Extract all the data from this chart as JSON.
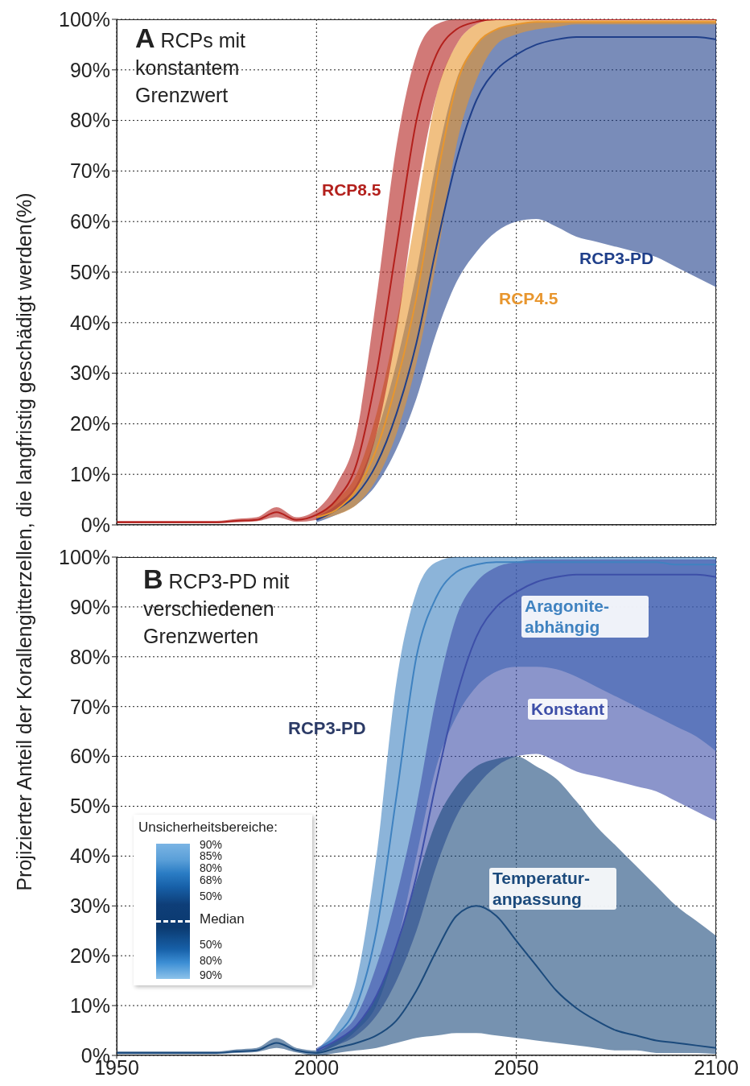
{
  "chart_data": [
    {
      "type": "line",
      "title": "A RCPs mit konstantem Grenzwert",
      "ylabel": "Projizierter Anteil der Korallengitterzellen, die langfristig geschädigt werden(%)",
      "x": [
        1950,
        1955,
        1960,
        1965,
        1970,
        1975,
        1980,
        1985,
        1990,
        1995,
        2000,
        2005,
        2010,
        2015,
        2020,
        2025,
        2030,
        2035,
        2040,
        2045,
        2050,
        2055,
        2060,
        2065,
        2070,
        2075,
        2080,
        2085,
        2090,
        2095,
        2100
      ],
      "series": [
        {
          "name": "RCP3-PD",
          "color": "#1f3f8a",
          "values": [
            null,
            null,
            null,
            null,
            null,
            null,
            null,
            null,
            null,
            null,
            1,
            3,
            6,
            12,
            22,
            36,
            55,
            72,
            84,
            90,
            93,
            95,
            96,
            96.5,
            96.5,
            96.5,
            96.5,
            96.5,
            96.5,
            96.5,
            96
          ],
          "lower": [
            null,
            null,
            null,
            null,
            null,
            null,
            null,
            null,
            null,
            null,
            0.5,
            2,
            4,
            8,
            15,
            25,
            38,
            48,
            54,
            58,
            60,
            60.5,
            59,
            57,
            56,
            55,
            54,
            53,
            51,
            49,
            47
          ],
          "upper": [
            null,
            null,
            null,
            null,
            null,
            null,
            null,
            null,
            null,
            null,
            1.5,
            4,
            8,
            18,
            32,
            50,
            72,
            88,
            95,
            98,
            99,
            99.5,
            99.5,
            99.5,
            99.5,
            99.5,
            99.5,
            99.5,
            99.5,
            99.5,
            99.5
          ]
        },
        {
          "name": "RCP4.5",
          "color": "#e8962e",
          "values": [
            null,
            null,
            null,
            null,
            null,
            null,
            null,
            null,
            null,
            null,
            1.5,
            3,
            7,
            15,
            28,
            45,
            68,
            87,
            95,
            98,
            99,
            99.5,
            99.5,
            99.5,
            99.5,
            99.5,
            99.5,
            99.5,
            99.5,
            99.5,
            99.5
          ],
          "lower": [
            null,
            null,
            null,
            null,
            null,
            null,
            null,
            null,
            null,
            null,
            1,
            2,
            4,
            9,
            18,
            32,
            52,
            75,
            88,
            95,
            97,
            98,
            98.5,
            99,
            99,
            99,
            99,
            99,
            99,
            99,
            99
          ],
          "upper": [
            null,
            null,
            null,
            null,
            null,
            null,
            null,
            null,
            null,
            null,
            2,
            5,
            10,
            22,
            40,
            62,
            85,
            95,
            99,
            100,
            100,
            100,
            100,
            100,
            100,
            100,
            100,
            100,
            100,
            100,
            100
          ]
        },
        {
          "name": "RCP8.5",
          "color": "#b3201c",
          "values": [
            0.5,
            0.5,
            0.5,
            0.5,
            0.5,
            0.5,
            0.8,
            1,
            2.5,
            1,
            2,
            5,
            12,
            30,
            55,
            80,
            93,
            98,
            99.5,
            100,
            100,
            100,
            100,
            100,
            100,
            100,
            100,
            100,
            100,
            100,
            100
          ],
          "lower": [
            0.3,
            0.3,
            0.3,
            0.3,
            0.3,
            0.3,
            0.5,
            0.7,
            1.5,
            0.6,
            1,
            3,
            7,
            18,
            38,
            65,
            85,
            95,
            99,
            100,
            100,
            100,
            100,
            100,
            100,
            100,
            100,
            100,
            100,
            100,
            100
          ],
          "upper": [
            0.8,
            0.8,
            0.8,
            0.8,
            0.8,
            0.8,
            1.2,
            1.5,
            3.5,
            1.5,
            3,
            8,
            18,
            45,
            75,
            93,
            99,
            100,
            100,
            100,
            100,
            100,
            100,
            100,
            100,
            100,
            100,
            100,
            100,
            100,
            100
          ]
        }
      ],
      "xlim": [
        1950,
        2100
      ],
      "xticks": [
        1950,
        2000,
        2050,
        2100
      ],
      "ylim": [
        0,
        100
      ],
      "yticks": [
        {
          "value": 0,
          "label": "0%"
        },
        {
          "value": 10,
          "label": "10%"
        },
        {
          "value": 20,
          "label": "20%"
        },
        {
          "value": 30,
          "label": "30%"
        },
        {
          "value": 40,
          "label": "40%"
        },
        {
          "value": 50,
          "label": "50%"
        },
        {
          "value": 60,
          "label": "60%"
        },
        {
          "value": 70,
          "label": "70%"
        },
        {
          "value": 80,
          "label": "80%"
        },
        {
          "value": 90,
          "label": "90%"
        },
        {
          "value": 100,
          "label": "100%"
        }
      ],
      "grid": true,
      "tick_labels": "y"
    },
    {
      "type": "line",
      "title": "B RCP3-PD mit verschiedenen Grenzwerten",
      "legend_title": "Unsicherheitsbereiche:",
      "annotations": [
        "RCP3-PD",
        "90%",
        "85%",
        "80%",
        "68%",
        "50%",
        "Median",
        "50%",
        "80%",
        "90%"
      ],
      "x": [
        1950,
        1955,
        1960,
        1965,
        1970,
        1975,
        1980,
        1985,
        1990,
        1995,
        2000,
        2005,
        2010,
        2015,
        2020,
        2025,
        2030,
        2035,
        2040,
        2045,
        2050,
        2055,
        2060,
        2065,
        2070,
        2075,
        2080,
        2085,
        2090,
        2095,
        2100
      ],
      "series": [
        {
          "name": "Aragonite-abhängig",
          "color": "#3f82c0",
          "values": [
            null,
            null,
            null,
            null,
            null,
            null,
            null,
            null,
            null,
            null,
            1,
            4,
            10,
            25,
            52,
            80,
            92,
            97,
            98.5,
            99,
            99,
            99,
            99,
            99,
            99,
            99,
            99,
            99,
            98.5,
            98.5,
            98.5
          ],
          "lower": [
            null,
            null,
            null,
            null,
            null,
            null,
            null,
            null,
            null,
            null,
            0.5,
            2,
            5,
            10,
            22,
            40,
            58,
            68,
            74,
            77,
            78,
            78,
            77.5,
            76,
            74,
            72,
            70,
            68,
            66,
            64,
            61
          ],
          "upper": [
            null,
            null,
            null,
            null,
            null,
            null,
            null,
            null,
            null,
            null,
            1,
            6,
            15,
            40,
            75,
            93,
            99,
            100,
            100,
            100,
            100,
            100,
            100,
            100,
            100,
            100,
            100,
            100,
            100,
            100,
            100
          ]
        },
        {
          "name": "Konstant",
          "color": "#3d4fa8",
          "values": [
            null,
            null,
            null,
            null,
            null,
            null,
            null,
            null,
            null,
            null,
            1,
            3,
            6,
            12,
            22,
            36,
            55,
            72,
            84,
            90,
            93,
            95,
            96,
            96.5,
            96.5,
            96.5,
            96.5,
            96.5,
            96.5,
            96.5,
            96
          ],
          "lower": [
            null,
            null,
            null,
            null,
            null,
            null,
            null,
            null,
            null,
            null,
            0.5,
            2,
            4,
            8,
            15,
            25,
            38,
            48,
            54,
            58,
            60,
            60.5,
            59,
            57,
            56,
            55,
            54,
            53,
            51,
            49,
            47
          ],
          "upper": [
            null,
            null,
            null,
            null,
            null,
            null,
            null,
            null,
            null,
            null,
            1.5,
            4,
            8,
            18,
            32,
            50,
            72,
            88,
            95,
            98,
            99,
            99.5,
            99.5,
            99.5,
            99.5,
            99.5,
            99.5,
            99.5,
            99.5,
            99.5,
            99.5
          ]
        },
        {
          "name": "Temperatur-anpassung",
          "color": "#1b4a7c",
          "values": [
            0.5,
            0.5,
            0.5,
            0.5,
            0.5,
            0.5,
            0.8,
            1,
            2.5,
            1,
            0.5,
            1.5,
            2.5,
            4,
            7,
            13,
            21,
            28,
            30,
            28,
            23,
            18,
            13,
            9.5,
            7,
            5,
            4,
            3,
            2.5,
            2,
            1.5
          ],
          "lower": [
            0.3,
            0.3,
            0.3,
            0.3,
            0.3,
            0.3,
            0.5,
            0.7,
            1.5,
            0.6,
            0,
            0.5,
            1,
            1.5,
            2.5,
            3.5,
            4,
            4.5,
            4.5,
            4,
            3.5,
            3,
            2.5,
            2,
            1.5,
            1,
            1,
            0.5,
            0.5,
            0.5,
            0.3
          ],
          "upper": [
            0.8,
            0.8,
            0.8,
            0.8,
            0.8,
            0.8,
            1.2,
            1.5,
            3.5,
            1.5,
            1,
            3,
            6,
            12,
            22,
            35,
            47,
            54,
            58,
            59.5,
            60,
            58,
            55.5,
            51,
            46,
            42,
            38,
            34,
            30,
            27,
            24
          ]
        }
      ],
      "xlim": [
        1950,
        2100
      ],
      "xticks": [
        1950,
        2000,
        2050,
        2100
      ],
      "ylim": [
        0,
        100
      ],
      "yticks": [
        {
          "value": 0,
          "label": "0%"
        },
        {
          "value": 10,
          "label": "10%"
        },
        {
          "value": 20,
          "label": "20%"
        },
        {
          "value": 30,
          "label": "30%"
        },
        {
          "value": 40,
          "label": "40%"
        },
        {
          "value": 50,
          "label": "50%"
        },
        {
          "value": 60,
          "label": "60%"
        },
        {
          "value": 70,
          "label": "70%"
        },
        {
          "value": 80,
          "label": "80%"
        },
        {
          "value": 90,
          "label": "90%"
        },
        {
          "value": 100,
          "label": "100%"
        }
      ],
      "grid": true
    }
  ]
}
